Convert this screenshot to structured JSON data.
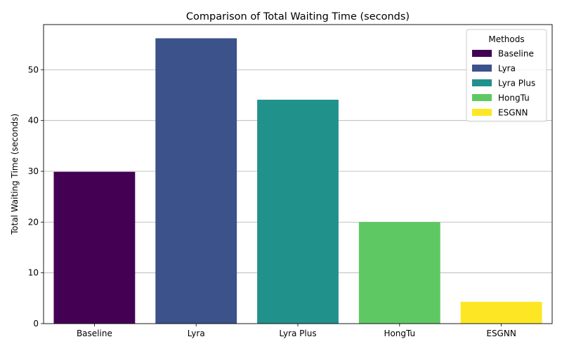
{
  "chart_data": {
    "type": "bar",
    "title": "Comparison of Total Waiting Time (seconds)",
    "xlabel": "",
    "ylabel": "Total Waiting Time (seconds)",
    "categories": [
      "Baseline",
      "Lyra",
      "Lyra Plus",
      "HongTu",
      "ESGNN"
    ],
    "values": [
      29.9,
      56.2,
      44.1,
      20.0,
      4.3
    ],
    "colors": [
      "#440154",
      "#3b528b",
      "#21918c",
      "#5ec962",
      "#fde725"
    ],
    "ylim": [
      0,
      58.9
    ],
    "yticks": [
      0,
      10,
      20,
      30,
      40,
      50
    ],
    "grid": "y",
    "legend": {
      "title": "Methods",
      "placement": "top-right",
      "entries": [
        "Baseline",
        "Lyra",
        "Lyra Plus",
        "HongTu",
        "ESGNN"
      ]
    }
  }
}
